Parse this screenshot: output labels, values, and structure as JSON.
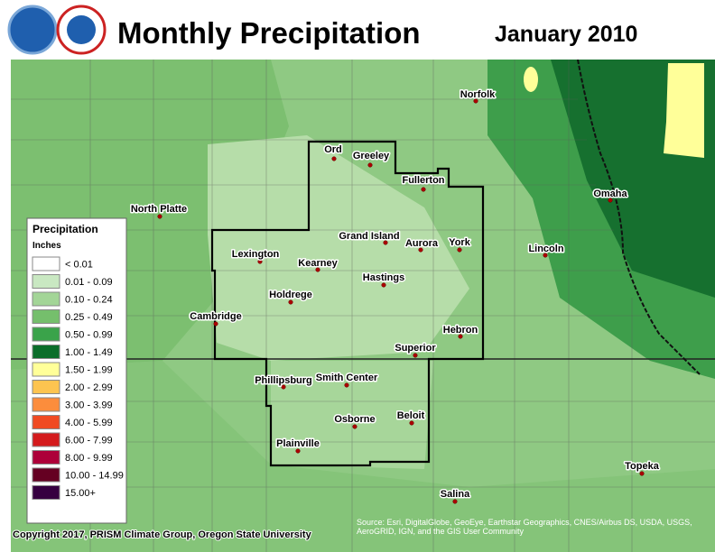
{
  "header": {
    "title": "Monthly Precipitation",
    "date": "January 2010"
  },
  "cities": [
    "Norfolk",
    "Ord",
    "Greeley",
    "Fullerton",
    "North Platte",
    "Omaha",
    "Grand Island",
    "Aurora",
    "York",
    "Lincoln",
    "Lexington",
    "Kearney",
    "Hastings",
    "Holdrege",
    "Cambridge",
    "Hebron",
    "Superior",
    "Phillipsburg",
    "Smith Center",
    "Beloit",
    "Osborne",
    "Plainville",
    "Topeka",
    "Salina"
  ],
  "legend": {
    "title": "Precipitation",
    "units": "Inches",
    "items": [
      {
        "label": "< 0.01",
        "color": "#ffffff"
      },
      {
        "label": "0.01 - 0.09",
        "color": "#c9e8c2"
      },
      {
        "label": "0.10 - 0.24",
        "color": "#a3d597"
      },
      {
        "label": "0.25 - 0.49",
        "color": "#75bf6c"
      },
      {
        "label": "0.50 - 0.99",
        "color": "#3aa34a"
      },
      {
        "label": "1.00 - 1.49",
        "color": "#0b6e2a"
      },
      {
        "label": "1.50 - 1.99",
        "color": "#ffff99"
      },
      {
        "label": "2.00 - 2.99",
        "color": "#fdc450"
      },
      {
        "label": "3.00 - 3.99",
        "color": "#fc8d3c"
      },
      {
        "label": "4.00 - 5.99",
        "color": "#f04a22"
      },
      {
        "label": "6.00 - 7.99",
        "color": "#d41a1c"
      },
      {
        "label": "8.00 - 9.99",
        "color": "#ad0039"
      },
      {
        "label": "10.00 - 14.99",
        "color": "#650022"
      },
      {
        "label": "15.00+",
        "color": "#360040"
      }
    ]
  },
  "copyright": "Copyright 2017, PRISM Climate Group, Oregon State University",
  "source": "Source: Esri, DigitalGlobe, GeoEye, Earthstar Geographics, CNES/Airbus DS, USDA, USGS, AeroGRID, IGN, and the GIS User Community"
}
